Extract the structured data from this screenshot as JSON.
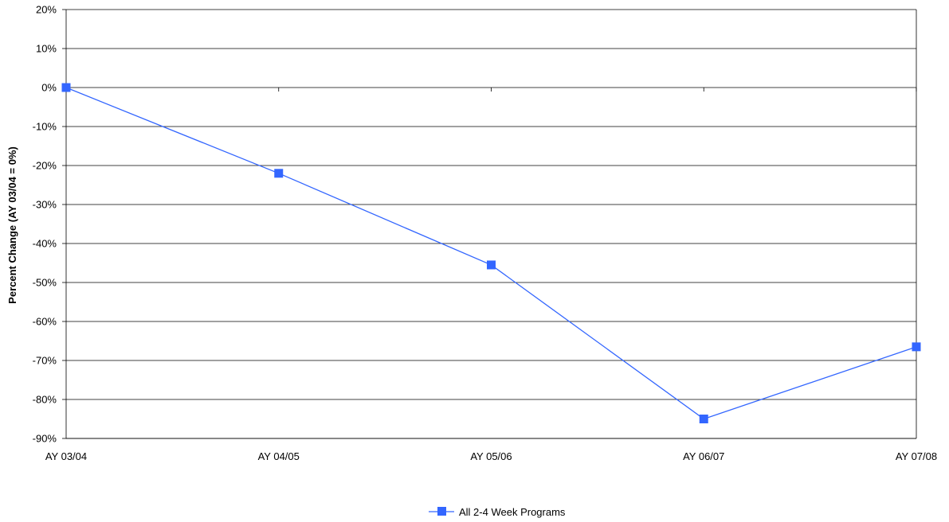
{
  "chart_data": {
    "type": "line",
    "categories": [
      "AY 03/04",
      "AY 04/05",
      "AY 05/06",
      "AY 06/07",
      "AY 07/08"
    ],
    "series": [
      {
        "name": "All 2-4 Week Programs",
        "values": [
          0,
          -22,
          -45.5,
          -85,
          -66.5
        ],
        "color": "#3366ff"
      }
    ],
    "ylabel": "Percent Change (AY 03/04 = 0%)",
    "xlabel": "",
    "ylim": [
      -90,
      20
    ],
    "y_ticks": [
      20,
      10,
      0,
      -10,
      -20,
      -30,
      -40,
      -50,
      -60,
      -70,
      -80,
      -90
    ],
    "y_tick_labels": [
      "20%",
      "10%",
      "0%",
      "-10%",
      "-20%",
      "-30%",
      "-40%",
      "-50%",
      "-60%",
      "-70%",
      "-80%",
      "-90%"
    ],
    "grid": true,
    "legend_position": "bottom-center",
    "marker": "square"
  }
}
